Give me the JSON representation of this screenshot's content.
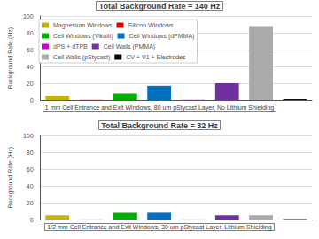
{
  "chart_data": [
    {
      "type": "bar",
      "title": "Total Background Rate = 140 Hz",
      "subtitle": "1 mm Cell Entrance and Exit Windows, 80 um pStycast Layer, No Lithium Shielding",
      "ylabel": "Background Rate (Hz)",
      "categories": [
        "Magnesium Windows",
        "Silicon Windows",
        "Cell Windows (Vikuiti)",
        "Cell Windows (dPMMA)",
        "dPS + dTPB",
        "Cell Walls (PMMA)",
        "Cell Walls (pStycast)",
        "CV + V1 + Electrodes"
      ],
      "values": [
        5,
        0.2,
        8,
        17,
        0.2,
        20,
        88,
        1
      ],
      "colors": [
        "#c8b400",
        "#e00000",
        "#00b000",
        "#0070c0",
        "#cc00cc",
        "#7030a0",
        "#aaaaaa",
        "#000000"
      ],
      "ylim": [
        0,
        100
      ],
      "yticks": [
        0,
        20,
        40,
        60,
        80,
        100
      ],
      "grid": true,
      "legend": "upper left",
      "tick_labels": "y"
    },
    {
      "type": "bar",
      "title": "Total Background Rate = 32 Hz",
      "subtitle": "1/2 mm Cell Entrance and Exit Windows, 30 um pStycast Layer, Lithium Shielding",
      "ylabel": "Background Rate (Hz)",
      "categories": [
        null,
        null,
        null,
        null,
        null,
        null,
        null,
        null
      ],
      "values": [
        5,
        0.1,
        8,
        8,
        0.1,
        5,
        5,
        0.5
      ],
      "colors": [
        "#c8b400",
        "#e00000",
        "#00b000",
        "#0070c0",
        "#cc00cc",
        "#7030a0",
        "#aaaaaa",
        "#000000"
      ],
      "ylim": [
        0,
        100
      ],
      "yticks": [
        0,
        20,
        40,
        60,
        80,
        100
      ],
      "grid": true,
      "tick_labels": "y"
    }
  ]
}
